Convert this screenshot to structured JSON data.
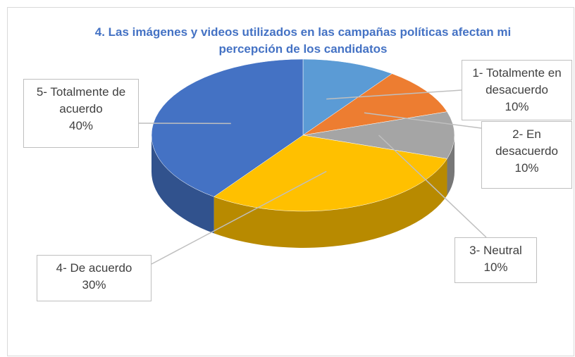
{
  "chart_data": {
    "type": "pie",
    "title": "4. Las imágenes y videos utilizados en las campañas políticas afectan mi percepción de los candidatos",
    "categories": [
      "1- Totalmente en desacuerdo",
      "2- En desacuerdo",
      "3- Neutral",
      "4- De acuerdo",
      "5- Totalmente de acuerdo"
    ],
    "values": [
      10,
      10,
      10,
      30,
      40
    ],
    "value_labels": [
      "10%",
      "10%",
      "10%",
      "30%",
      "40%"
    ],
    "colors": [
      "#5b9bd5",
      "#ed7d31",
      "#a5a5a5",
      "#ffc000",
      "#4472c4"
    ]
  }
}
